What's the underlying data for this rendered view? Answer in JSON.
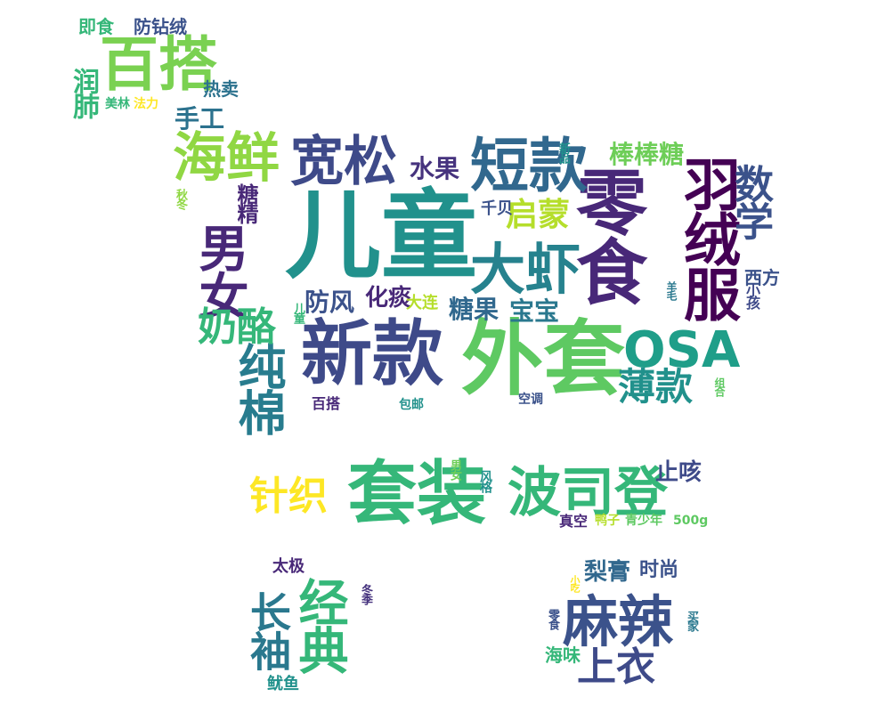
{
  "palette": {
    "dark_purple": "#440154",
    "indigo": "#3b528b",
    "slate": "#31688e",
    "teal": "#21918c",
    "green": "#35b779",
    "lime": "#90d743",
    "yellow": "#fde725"
  },
  "words": [
    {
      "text": "儿童",
      "color": "#21918c"
    },
    {
      "text": "外套",
      "color": "#5ec962"
    },
    {
      "text": "新款",
      "color": "#3e4a89"
    },
    {
      "text": "套装",
      "color": "#35b779"
    },
    {
      "text": "零食",
      "color": "#482878"
    },
    {
      "text": "短款",
      "color": "#31688e"
    },
    {
      "text": "宽松",
      "color": "#3e4a89"
    },
    {
      "text": "大虾",
      "color": "#26828e"
    },
    {
      "text": "羽绒服",
      "color": "#440154"
    },
    {
      "text": "波司登",
      "color": "#35b779"
    },
    {
      "text": "OSA",
      "color": "#1f9e89"
    },
    {
      "text": "海鲜",
      "color": "#90d743"
    },
    {
      "text": "百搭",
      "color": "#7ad151"
    },
    {
      "text": "纯棉",
      "color": "#287c8e"
    },
    {
      "text": "男女",
      "color": "#482878"
    },
    {
      "text": "麻辣",
      "color": "#3b528b"
    },
    {
      "text": "经典",
      "color": "#35b779"
    },
    {
      "text": "长袖",
      "color": "#2a788e"
    },
    {
      "text": "针织",
      "color": "#fde725"
    },
    {
      "text": "奶酪",
      "color": "#35b779"
    },
    {
      "text": "上衣",
      "color": "#3e4a89"
    },
    {
      "text": "数学",
      "color": "#3b528b"
    },
    {
      "text": "薄款",
      "color": "#21918c"
    },
    {
      "text": "启蒙",
      "color": "#b5de2b"
    },
    {
      "text": "棒棒糖",
      "color": "#6ece58"
    },
    {
      "text": "止咳",
      "color": "#3e4a89"
    },
    {
      "text": "梨膏",
      "color": "#31688e"
    },
    {
      "text": "时尚",
      "color": "#3b528b"
    },
    {
      "text": "手工",
      "color": "#2c728e"
    },
    {
      "text": "水果",
      "color": "#46337e"
    },
    {
      "text": "糖果",
      "color": "#31688e"
    },
    {
      "text": "宝宝",
      "color": "#2a788e"
    },
    {
      "text": "防风",
      "color": "#3b528b"
    },
    {
      "text": "化痰",
      "color": "#482878"
    },
    {
      "text": "润肺",
      "color": "#35b779"
    },
    {
      "text": "热卖",
      "color": "#2c728e"
    },
    {
      "text": "即食",
      "color": "#35b779"
    },
    {
      "text": "防钻绒",
      "color": "#3b528b"
    },
    {
      "text": "糖精",
      "color": "#482878"
    },
    {
      "text": "大连",
      "color": "#b5de2b"
    },
    {
      "text": "海味",
      "color": "#35b779"
    },
    {
      "text": "太极",
      "color": "#482878"
    },
    {
      "text": "鱿鱼",
      "color": "#21918c"
    },
    {
      "text": "千贝",
      "color": "#3b528b"
    },
    {
      "text": "西方",
      "color": "#3b528b"
    },
    {
      "text": "美林",
      "color": "#35b779"
    },
    {
      "text": "法力",
      "color": "#fde725"
    },
    {
      "text": "真空",
      "color": "#482878"
    },
    {
      "text": "500g",
      "color": "#5ec962"
    },
    {
      "text": "青少年",
      "color": "#5ec962"
    },
    {
      "text": "鸭子",
      "color": "#b5de2b"
    },
    {
      "text": "空调",
      "color": "#3b528b"
    },
    {
      "text": "百搭",
      "color": "#482878"
    },
    {
      "text": "包邮",
      "color": "#21918c"
    },
    {
      "text": "新品",
      "color": "#21918c"
    },
    {
      "text": "儿童",
      "color": "#35b779"
    },
    {
      "text": "小孩",
      "color": "#3e4a89"
    },
    {
      "text": "风格",
      "color": "#21918c"
    },
    {
      "text": "买家",
      "color": "#2a788e"
    },
    {
      "text": "男女",
      "color": "#6ece58"
    },
    {
      "text": "秋冬",
      "color": "#90d743"
    },
    {
      "text": "小吃",
      "color": "#fde725"
    },
    {
      "text": "冬季",
      "color": "#46337e"
    },
    {
      "text": "零食",
      "color": "#3b528b"
    },
    {
      "text": "羊毛",
      "color": "#2a788e"
    },
    {
      "text": "组合",
      "color": "#5ec962"
    }
  ]
}
